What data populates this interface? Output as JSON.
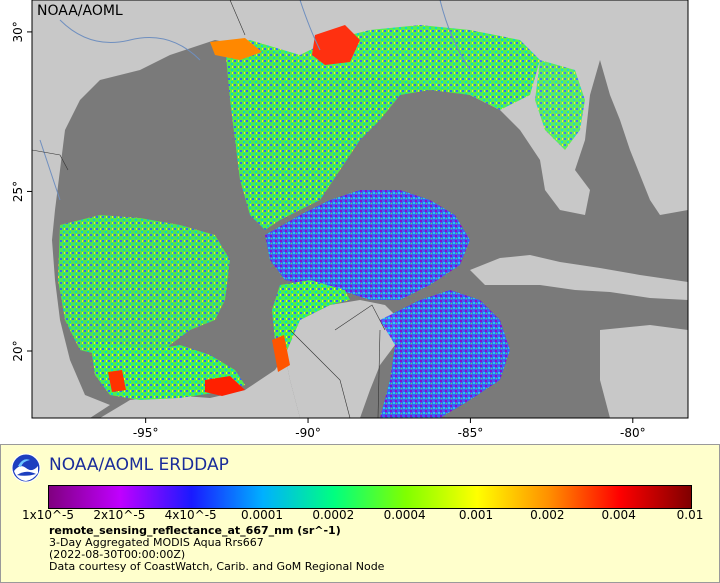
{
  "map": {
    "watermark": "NOAA/AOML",
    "lon_ticks": [
      "-95°",
      "-90°",
      "-85°",
      "-80°"
    ],
    "lat_ticks": [
      "30°",
      "25°",
      "20°"
    ],
    "lon_range": [
      -98.5,
      -78.3
    ],
    "lat_range": [
      17.9,
      31.0
    ],
    "colors": {
      "land": "#c8c8c8",
      "no_data": "#7a7a7a",
      "rivers": "#6f8fbf",
      "borders": "#333333"
    }
  },
  "legend": {
    "title": "NOAA/AOML ERDDAP",
    "colorbar_ticks": [
      "1x10^-5",
      "2x10^-5",
      "4x10^-5",
      "0.0001",
      "0.0002",
      "0.0004",
      "0.001",
      "0.002",
      "0.004",
      "0.01"
    ],
    "colorbar_colors": [
      "#800080",
      "#c000ff",
      "#1a1aff",
      "#00b0ff",
      "#00ff80",
      "#80ff00",
      "#ffff00",
      "#ff9000",
      "#ff0000",
      "#800000"
    ],
    "variable": "remote_sensing_reflectance_at_667_nm (sr^-1)",
    "dataset": "3-Day Aggregated MODIS Aqua Rrs667",
    "time": "(2022-08-30T00:00:00Z)",
    "credit": "Data courtesy of CoastWatch, Carib. and GoM Regional Node"
  }
}
